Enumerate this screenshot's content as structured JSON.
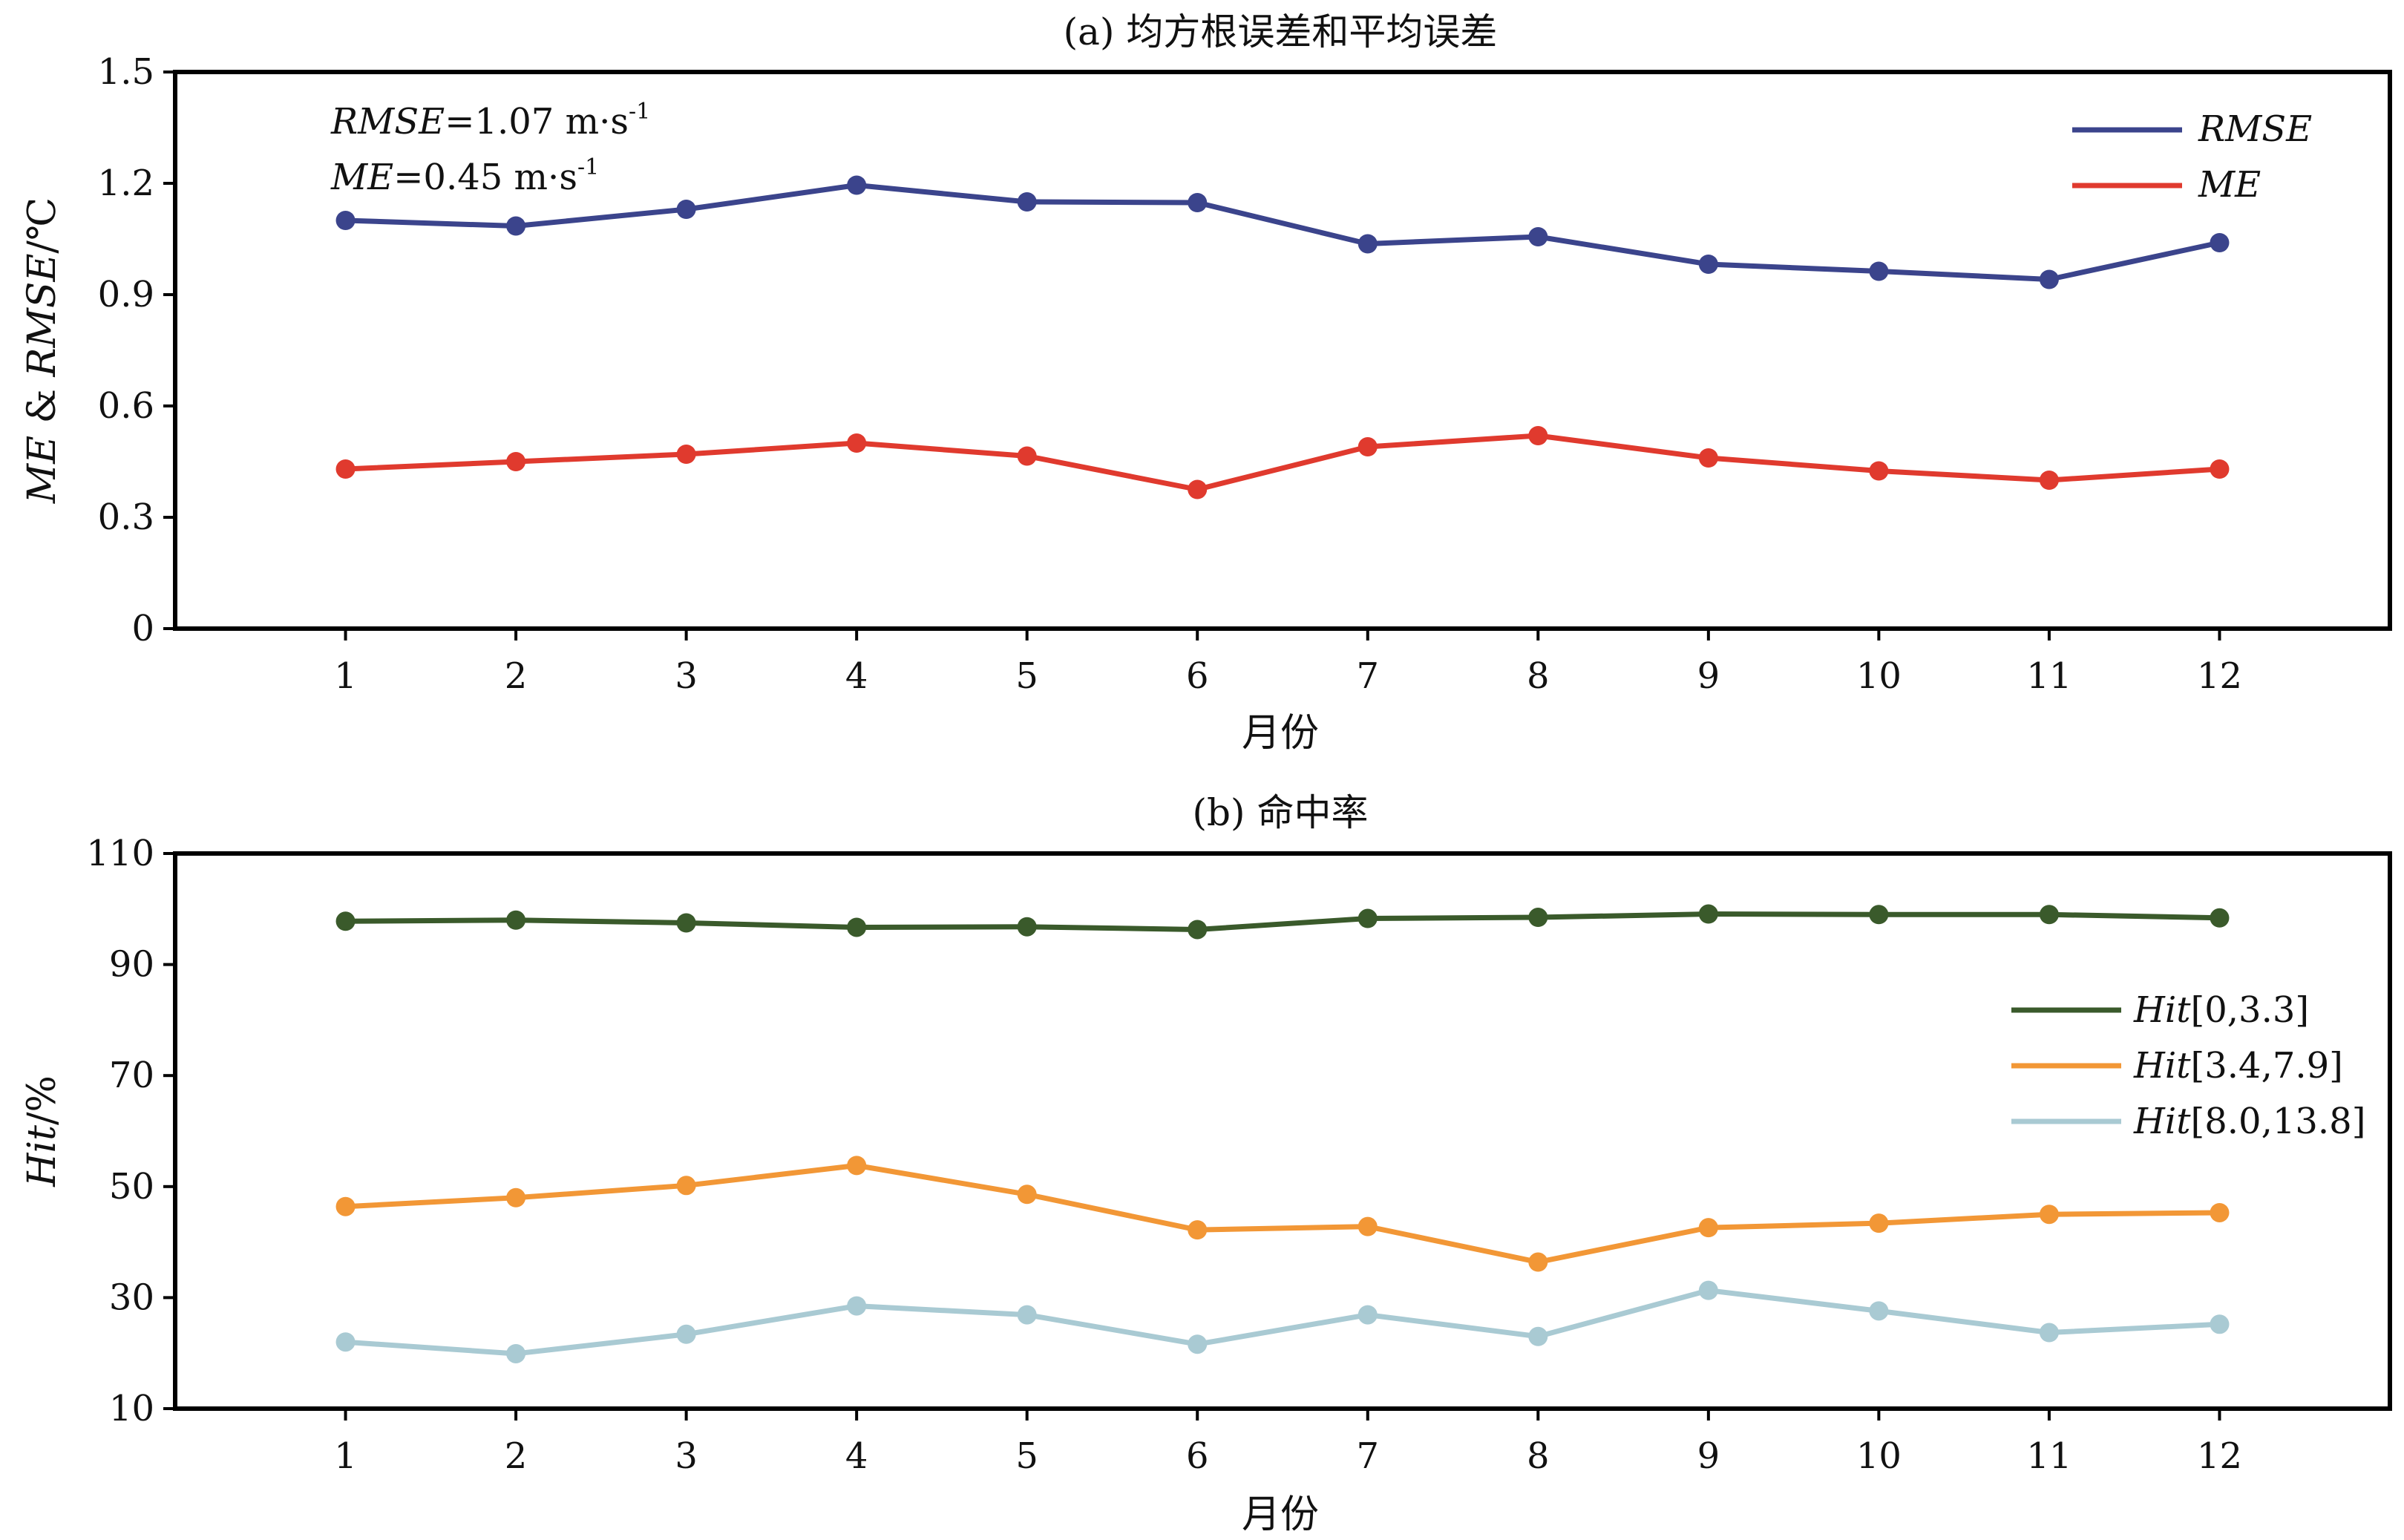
{
  "chart_data": [
    {
      "type": "line",
      "title": "(a) 均方根误差和平均误差",
      "xlabel": "月份",
      "ylabel_parts": [
        "ME",
        " & ",
        "RMSE",
        "/℃"
      ],
      "categories": [
        "1",
        "2",
        "3",
        "4",
        "5",
        "6",
        "7",
        "8",
        "9",
        "10",
        "11",
        "12"
      ],
      "xlim": [
        0,
        13
      ],
      "ylim": [
        0,
        1.5
      ],
      "yticks": [
        0,
        0.3,
        0.6,
        0.9,
        1.2,
        1.5
      ],
      "ytick_labels": [
        "0",
        "0.3",
        "0.6",
        "0.9",
        "1.2",
        "1.5"
      ],
      "legend": "top-right",
      "annotations": [
        {
          "var": "RMSE",
          "text": "=1.07 m·s",
          "sup": "-1"
        },
        {
          "var": "ME",
          "text": "=0.45 m·s",
          "sup": "-1"
        }
      ],
      "series": [
        {
          "name": "RMSE",
          "color": "#3b448c",
          "values": [
            1.1,
            1.085,
            1.13,
            1.195,
            1.15,
            1.148,
            1.037,
            1.056,
            0.982,
            0.963,
            0.941,
            1.04
          ]
        },
        {
          "name": "ME",
          "color": "#e03a2e",
          "values": [
            0.43,
            0.45,
            0.47,
            0.5,
            0.465,
            0.375,
            0.49,
            0.52,
            0.46,
            0.425,
            0.4,
            0.43
          ]
        }
      ]
    },
    {
      "type": "line",
      "title": "(b) 命中率",
      "xlabel": "月份",
      "ylabel_parts": [
        "Hit",
        "/%"
      ],
      "categories": [
        "1",
        "2",
        "3",
        "4",
        "5",
        "6",
        "7",
        "8",
        "9",
        "10",
        "11",
        "12"
      ],
      "xlim": [
        0,
        13
      ],
      "ylim": [
        10,
        110
      ],
      "yticks": [
        10,
        30,
        50,
        70,
        90,
        110
      ],
      "ytick_labels": [
        "10",
        "30",
        "50",
        "70",
        "90",
        "110"
      ],
      "legend": "right",
      "series": [
        {
          "name": "Hit",
          "range": "[0,3.3]",
          "color": "#3a5a2b",
          "values": [
            97.8,
            98.0,
            97.5,
            96.7,
            96.8,
            96.3,
            98.3,
            98.5,
            99.1,
            99.0,
            99.0,
            98.4
          ]
        },
        {
          "name": "Hit",
          "range": "[3.4,7.9]",
          "color": "#f29736",
          "values": [
            46.4,
            48.0,
            50.2,
            53.8,
            48.6,
            42.2,
            42.8,
            36.4,
            42.6,
            43.4,
            45.0,
            45.3
          ]
        },
        {
          "name": "Hit",
          "range": "[8.0,13.8]",
          "color": "#a9cad3",
          "values": [
            22.0,
            19.9,
            23.4,
            28.5,
            26.9,
            21.6,
            26.9,
            23.0,
            31.3,
            27.6,
            23.7,
            25.2
          ]
        }
      ]
    }
  ]
}
